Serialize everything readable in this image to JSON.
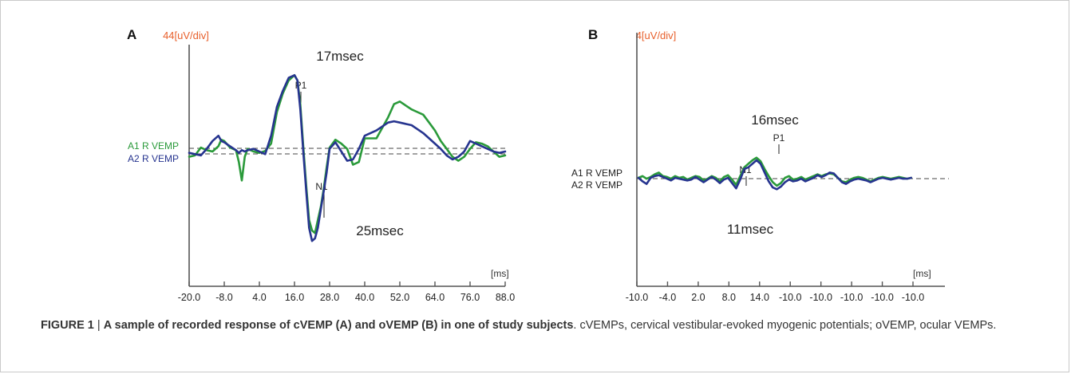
{
  "chart_data": [
    {
      "type": "line",
      "panel_label": "A",
      "y_scale_label": "44[uV/div]",
      "x_unit_label": "[ms]",
      "x_tick_labels": [
        "-20.0",
        "-8.0",
        "4.0",
        "16.0",
        "28.0",
        "40.0",
        "52.0",
        "64.0",
        "76.0",
        "88.0"
      ],
      "xlim": [
        -20,
        88
      ],
      "peak_labels": {
        "p1": "P1",
        "n1": "N1"
      },
      "latency_labels": {
        "top": "17msec",
        "bottom": "25msec"
      },
      "baseline_labels": [
        "A1 R VEMP",
        "A2 R VEMP"
      ],
      "colors": {
        "a1": "#2a9a3a",
        "a2": "#26348f",
        "scale_label": "#e8602c"
      },
      "series": [
        {
          "name": "A1 R VEMP",
          "x": [
            -20,
            -18,
            -16,
            -14,
            -12,
            -10,
            -9,
            -8,
            -6,
            -4,
            -3,
            -2,
            -1,
            0,
            1,
            2,
            4,
            6,
            8,
            10,
            12,
            14,
            16,
            17,
            18,
            19,
            20,
            21,
            22,
            23,
            24,
            25,
            26,
            27,
            28,
            30,
            32,
            34,
            36,
            38,
            40,
            44,
            48,
            50,
            52,
            56,
            58,
            60,
            62,
            64,
            66,
            68,
            70,
            72,
            74,
            76,
            78,
            80,
            82,
            84,
            86,
            88
          ],
          "y": [
            -0.2,
            -0.15,
            0.15,
            0.05,
            0.0,
            0.2,
            0.45,
            0.4,
            0.15,
            0.05,
            -0.4,
            -1.1,
            -0.2,
            0.1,
            0.05,
            0.0,
            -0.05,
            0.02,
            0.3,
            1.5,
            2.2,
            2.7,
            2.9,
            2.7,
            1.8,
            0.2,
            -1.3,
            -2.6,
            -3.0,
            -3.1,
            -2.6,
            -2.1,
            -1.4,
            -0.6,
            0.15,
            0.45,
            0.3,
            0.1,
            -0.5,
            -0.4,
            0.5,
            0.5,
            1.3,
            1.8,
            1.9,
            1.6,
            1.5,
            1.4,
            1.1,
            0.8,
            0.4,
            0.1,
            -0.2,
            -0.35,
            -0.2,
            0.1,
            0.35,
            0.3,
            0.2,
            0.0,
            -0.2,
            -0.15
          ]
        },
        {
          "name": "A2 R VEMP",
          "x": [
            -20,
            -18,
            -16,
            -14,
            -12,
            -10,
            -9,
            -8,
            -6,
            -4,
            -3,
            -2,
            -1,
            0,
            2,
            4,
            6,
            8,
            10,
            12,
            14,
            16,
            17,
            18,
            19,
            20,
            21,
            22,
            23,
            24,
            25,
            26,
            27,
            28,
            30,
            32,
            34,
            36,
            38,
            40,
            44,
            48,
            50,
            52,
            56,
            58,
            60,
            62,
            64,
            66,
            68,
            70,
            72,
            74,
            76,
            78,
            80,
            82,
            84,
            86,
            88
          ],
          "y": [
            -0.05,
            -0.1,
            -0.15,
            0.1,
            0.4,
            0.6,
            0.4,
            0.35,
            0.2,
            0.05,
            -0.05,
            0.05,
            0.0,
            0.05,
            0.1,
            0.0,
            -0.1,
            0.6,
            1.7,
            2.3,
            2.8,
            2.9,
            2.7,
            1.6,
            0.0,
            -1.5,
            -2.9,
            -3.4,
            -3.3,
            -2.9,
            -2.2,
            -1.5,
            -0.8,
            0.1,
            0.35,
            0.0,
            -0.35,
            -0.3,
            0.1,
            0.6,
            0.8,
            1.1,
            1.15,
            1.1,
            1.0,
            0.85,
            0.7,
            0.5,
            0.3,
            0.1,
            -0.15,
            -0.3,
            -0.2,
            0.0,
            0.4,
            0.3,
            0.2,
            0.1,
            0.0,
            -0.05,
            0.0
          ]
        }
      ]
    },
    {
      "type": "line",
      "panel_label": "B",
      "y_scale_label": "4[uV/div]",
      "x_unit_label": "[ms]",
      "x_tick_labels": [
        "-10.0",
        "-4.0",
        "2.0",
        "8.0",
        "14.0",
        "-10.0",
        "-10.0",
        "-10.0",
        "-10.0",
        "-10.0"
      ],
      "peak_labels": {
        "p1": "P1",
        "n1": "N1"
      },
      "latency_labels": {
        "top": "16msec",
        "bottom": "11msec"
      },
      "baseline_labels": [
        "A1 R VEMP",
        "A2 R VEMP"
      ],
      "colors": {
        "a1": "#2a9a3a",
        "a2": "#26348f",
        "scale_label": "#e8602c"
      },
      "series": [
        {
          "name": "A1 R VEMP",
          "x": [
            0,
            0.3,
            0.6,
            0.9,
            1.2,
            1.5,
            1.8,
            2.1,
            2.4,
            2.7,
            3.0,
            3.3,
            3.6,
            3.9,
            4.2,
            4.5,
            4.8,
            5.1,
            5.4,
            5.7,
            6.0,
            6.3,
            6.6,
            6.9,
            7.2,
            7.5,
            7.8,
            8.1,
            8.4,
            8.7,
            9.0,
            9.3,
            9.6,
            9.9,
            10.2,
            10.5,
            10.8,
            11.1,
            11.4,
            11.7,
            12.0,
            12.3,
            12.6,
            12.9,
            13.2,
            13.5,
            13.8,
            14.1,
            14.4,
            14.7,
            15.0,
            15.3,
            15.6,
            15.9,
            16.2,
            16.5,
            16.8,
            17.1,
            17.4,
            17.7,
            18.0,
            18.3,
            18.6,
            18.9,
            19.2,
            19.5,
            19.8,
            20.1
          ],
          "y": [
            0.0,
            0.1,
            -0.05,
            0.05,
            0.2,
            0.3,
            0.1,
            0.05,
            -0.05,
            0.1,
            0.0,
            0.05,
            -0.1,
            0.0,
            0.1,
            0.05,
            -0.15,
            -0.05,
            0.1,
            0.0,
            -0.2,
            0.05,
            0.15,
            -0.1,
            -0.4,
            0.1,
            0.6,
            0.8,
            1.0,
            1.15,
            0.95,
            0.5,
            0.1,
            -0.25,
            -0.45,
            -0.3,
            0.0,
            0.1,
            -0.1,
            -0.05,
            0.05,
            -0.1,
            0.0,
            0.1,
            0.2,
            0.1,
            0.2,
            0.25,
            0.2,
            0.0,
            -0.2,
            -0.25,
            -0.1,
            0.0,
            0.05,
            0.0,
            -0.1,
            -0.2,
            -0.1,
            0.0,
            0.05,
            0.0,
            -0.05,
            0.0,
            0.05,
            0.0,
            -0.05,
            0.0
          ]
        },
        {
          "name": "A2 R VEMP",
          "x": [
            0,
            0.3,
            0.6,
            0.9,
            1.2,
            1.5,
            1.8,
            2.1,
            2.4,
            2.7,
            3.0,
            3.3,
            3.6,
            3.9,
            4.2,
            4.5,
            4.8,
            5.1,
            5.4,
            5.7,
            6.0,
            6.3,
            6.6,
            6.9,
            7.2,
            7.5,
            7.8,
            8.1,
            8.4,
            8.7,
            9.0,
            9.3,
            9.6,
            9.9,
            10.2,
            10.5,
            10.8,
            11.1,
            11.4,
            11.7,
            12.0,
            12.3,
            12.6,
            12.9,
            13.2,
            13.5,
            13.8,
            14.1,
            14.4,
            14.7,
            15.0,
            15.3,
            15.6,
            15.9,
            16.2,
            16.5,
            16.8,
            17.1,
            17.4,
            17.7,
            18.0,
            18.3,
            18.6,
            18.9,
            19.2,
            19.5,
            19.8,
            20.1
          ],
          "y": [
            0.0,
            -0.2,
            -0.35,
            0.0,
            0.1,
            0.15,
            0.05,
            -0.05,
            -0.15,
            0.0,
            -0.05,
            -0.1,
            -0.15,
            -0.1,
            0.05,
            -0.1,
            -0.25,
            -0.1,
            0.05,
            -0.1,
            -0.3,
            -0.1,
            0.0,
            -0.3,
            -0.6,
            -0.1,
            0.5,
            0.6,
            0.8,
            1.0,
            0.8,
            0.3,
            -0.2,
            -0.55,
            -0.65,
            -0.5,
            -0.25,
            -0.1,
            -0.2,
            -0.15,
            -0.05,
            -0.2,
            -0.1,
            0.0,
            0.15,
            0.05,
            0.15,
            0.3,
            0.25,
            0.0,
            -0.25,
            -0.35,
            -0.2,
            -0.1,
            -0.05,
            -0.1,
            -0.15,
            -0.25,
            -0.15,
            -0.05,
            0.0,
            -0.05,
            -0.1,
            -0.05,
            0.0,
            -0.05,
            -0.05,
            0.0
          ]
        }
      ]
    }
  ],
  "caption": {
    "label": "FIGURE 1",
    "separator": " | ",
    "title": "A sample of recorded response of cVEMP (A) and oVEMP (B) in one of study subjects",
    "text": ". cVEMPs, cervical vestibular-evoked myogenic potentials; oVEMP, ocular VEMPs."
  }
}
